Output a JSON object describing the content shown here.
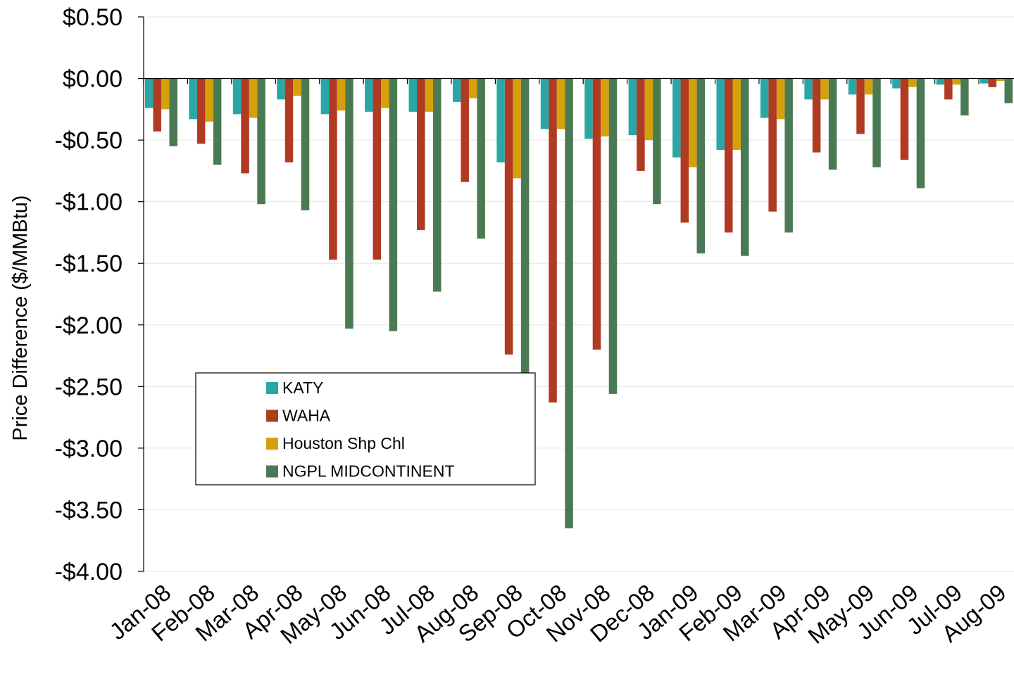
{
  "chart_data": {
    "type": "bar",
    "title": "",
    "xlabel": "",
    "ylabel": "Price Difference  ($/MMBtu)",
    "ylim": [
      -4.0,
      0.5
    ],
    "y_ticks": [
      0.5,
      0.0,
      -0.5,
      -1.0,
      -1.5,
      -2.0,
      -2.5,
      -3.0,
      -3.5,
      -4.0
    ],
    "y_tick_labels": [
      "$0.50",
      "$0.00",
      "-$0.50",
      "-$1.00",
      "-$1.50",
      "-$2.00",
      "-$2.50",
      "-$3.00",
      "-$3.50",
      "-$4.00"
    ],
    "grid": true,
    "legend_position": "lower-left",
    "categories": [
      "Jan-08",
      "Feb-08",
      "Mar-08",
      "Apr-08",
      "May-08",
      "Jun-08",
      "Jul-08",
      "Aug-08",
      "Sep-08",
      "Oct-08",
      "Nov-08",
      "Dec-08",
      "Jan-09",
      "Feb-09",
      "Mar-09",
      "Apr-09",
      "May-09",
      "Jun-09",
      "Jul-09",
      "Aug-09"
    ],
    "series": [
      {
        "name": "KATY",
        "color": "#2aa6a6",
        "values": [
          -0.24,
          -0.33,
          -0.29,
          -0.17,
          -0.29,
          -0.27,
          -0.27,
          -0.19,
          -0.68,
          -0.41,
          -0.49,
          -0.46,
          -0.64,
          -0.58,
          -0.32,
          -0.17,
          -0.13,
          -0.08,
          -0.05,
          -0.04
        ]
      },
      {
        "name": "WAHA",
        "color": "#b03a22",
        "values": [
          -0.43,
          -0.53,
          -0.77,
          -0.68,
          -1.47,
          -1.47,
          -1.23,
          -0.84,
          -2.24,
          -2.63,
          -2.2,
          -0.75,
          -1.17,
          -1.25,
          -1.08,
          -0.6,
          -0.45,
          -0.66,
          -0.17,
          -0.07
        ]
      },
      {
        "name": "Houston Shp Chl",
        "color": "#d4a00c",
        "values": [
          -0.25,
          -0.35,
          -0.32,
          -0.14,
          -0.26,
          -0.24,
          -0.27,
          -0.16,
          -0.81,
          -0.41,
          -0.47,
          -0.5,
          -0.72,
          -0.58,
          -0.33,
          -0.17,
          -0.13,
          -0.07,
          -0.05,
          -0.02
        ]
      },
      {
        "name": "NGPL MIDCONTINENT",
        "color": "#4a7a54",
        "values": [
          -0.55,
          -0.7,
          -1.02,
          -1.07,
          -2.03,
          -2.05,
          -1.73,
          -1.3,
          -2.41,
          -3.65,
          -2.56,
          -1.02,
          -1.42,
          -1.44,
          -1.25,
          -0.74,
          -0.72,
          -0.89,
          -0.3,
          -0.2
        ]
      }
    ]
  }
}
